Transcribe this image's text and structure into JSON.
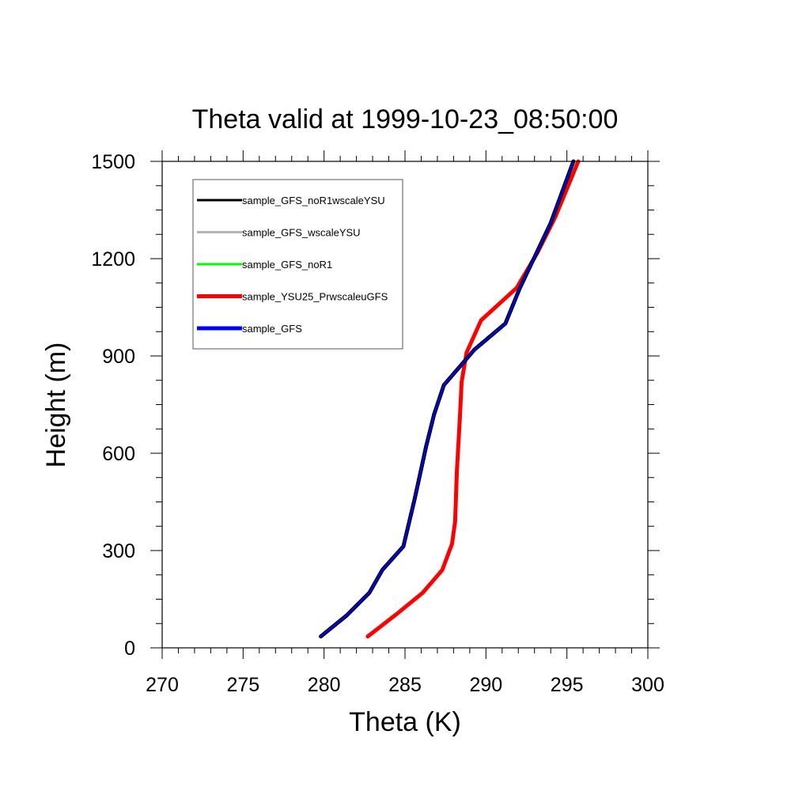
{
  "chart_data": {
    "type": "line",
    "title": "Theta valid at 1999-10-23_08:50:00",
    "xlabel": "Theta (K)",
    "ylabel": "Height (m)",
    "xlim": [
      270,
      300
    ],
    "ylim": [
      0,
      1500
    ],
    "x_ticks": [
      270,
      275,
      280,
      285,
      290,
      295,
      300
    ],
    "y_ticks": [
      0,
      300,
      600,
      900,
      1200,
      1500
    ],
    "grid": false,
    "legend_position": "top-left",
    "series": [
      {
        "name": "sample_GFS_noR1wscaleYSU",
        "color": "#000000",
        "x": [
          279.8,
          281.4,
          282.8,
          283.6,
          284.9,
          285.6,
          286.3,
          286.8,
          287.4,
          289.3,
          291.2,
          292.1,
          294.0,
          295.4
        ],
        "y": [
          35,
          100,
          170,
          240,
          313,
          460,
          620,
          720,
          810,
          920,
          1000,
          1110,
          1310,
          1500
        ]
      },
      {
        "name": "sample_GFS_wscaleYSU",
        "color": "#b4b4b4",
        "x": [
          279.8,
          281.4,
          282.8,
          283.6,
          284.9,
          285.6,
          286.3,
          286.8,
          287.4,
          289.3,
          291.2,
          292.1,
          294.0,
          295.4
        ],
        "y": [
          35,
          100,
          170,
          240,
          313,
          460,
          620,
          720,
          810,
          920,
          1000,
          1110,
          1310,
          1500
        ]
      },
      {
        "name": "sample_GFS_noR1",
        "color": "#00ff00",
        "x": [
          279.8,
          281.4,
          282.8,
          283.6,
          284.9,
          285.6,
          286.3,
          286.8,
          287.4,
          289.3,
          291.2,
          292.1,
          294.0,
          295.4
        ],
        "y": [
          35,
          100,
          170,
          240,
          313,
          460,
          620,
          720,
          810,
          920,
          1000,
          1110,
          1310,
          1500
        ]
      },
      {
        "name": "sample_YSU25_PrwscaleuGFS",
        "color": "#ff0000",
        "x": [
          282.7,
          284.5,
          286.1,
          287.3,
          287.9,
          288.1,
          288.2,
          288.4,
          288.5,
          288.8,
          289.7,
          291.9,
          293.2,
          294.3,
          295.7
        ],
        "y": [
          35,
          105,
          170,
          240,
          320,
          390,
          540,
          720,
          820,
          910,
          1010,
          1110,
          1220,
          1330,
          1500
        ]
      },
      {
        "name": "sample_GFS",
        "color": "#0000ff",
        "x": [
          279.8,
          281.4,
          282.8,
          283.6,
          284.9,
          285.6,
          286.3,
          286.8,
          287.4,
          289.3,
          291.2,
          292.1,
          294.0,
          295.4
        ],
        "y": [
          35,
          100,
          170,
          240,
          313,
          460,
          620,
          720,
          810,
          920,
          1000,
          1110,
          1310,
          1500
        ]
      }
    ]
  }
}
